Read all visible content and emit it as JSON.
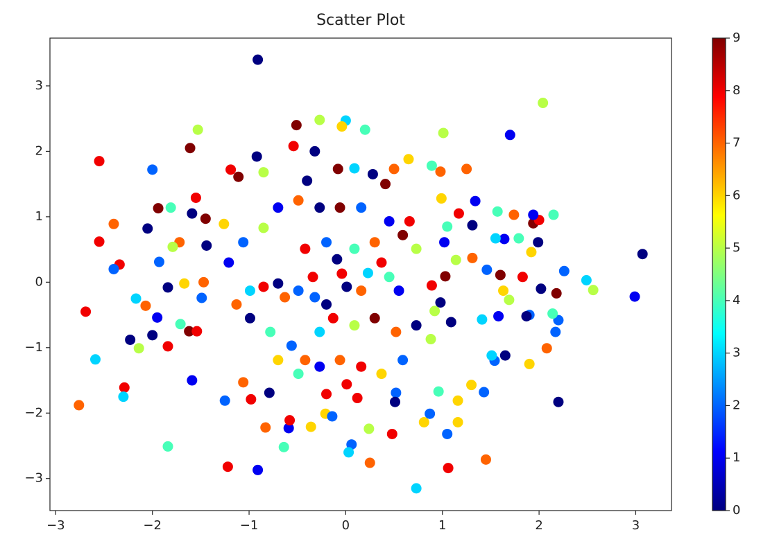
{
  "chart_data": {
    "type": "scatter",
    "title": "Scatter Plot",
    "colormap": "jet",
    "clim": [
      0,
      9
    ],
    "xlim": [
      -3.06,
      3.37
    ],
    "ylim": [
      -3.49,
      3.73
    ],
    "xticks": [
      {
        "value": -3,
        "label": "−3"
      },
      {
        "value": -2,
        "label": "−2"
      },
      {
        "value": -1,
        "label": "−1"
      },
      0,
      1,
      2,
      3
    ],
    "yticks": [
      {
        "value": -3,
        "label": "−3"
      },
      {
        "value": -2,
        "label": "−2"
      },
      {
        "value": -1,
        "label": "−1"
      },
      0,
      1,
      2,
      3
    ],
    "colorbar_ticks": [
      0,
      1,
      2,
      3,
      4,
      5,
      6,
      7,
      8,
      9
    ],
    "x": [
      -0.91,
      2.04,
      1.7,
      -2.55,
      -1.53,
      -1.61,
      -0.51,
      -0.27,
      0.0,
      -0.04,
      0.2,
      1.01,
      -0.54,
      -0.32,
      -0.92,
      -2.0,
      0.65,
      1.25,
      0.5,
      -0.08,
      0.28,
      0.09,
      -1.19,
      -1.11,
      -0.85,
      -0.4,
      0.41,
      -2.4,
      -2.55,
      -1.94,
      -2.05,
      -1.81,
      -1.55,
      -1.59,
      -1.45,
      -1.26,
      -1.44,
      -1.72,
      -1.79,
      -2.34,
      -2.4,
      -1.93,
      -1.84,
      -1.67,
      -1.47,
      -1.49,
      -2.17,
      -2.07,
      -1.95,
      -2.69,
      -1.71,
      -1.62,
      -1.54,
      -1.84,
      -2.23,
      -2.0,
      -2.14,
      -2.59,
      -1.59,
      -2.29,
      -2.3,
      -2.76,
      -1.84,
      -1.22,
      -0.91,
      -1.25,
      -0.98,
      -0.79,
      -1.06,
      -0.83,
      -0.59,
      -0.58,
      -0.64,
      -0.36,
      -0.21,
      -0.14,
      0.06,
      0.03,
      0.24,
      0.25,
      0.48,
      0.52,
      0.51,
      0.81,
      0.87,
      0.96,
      1.05,
      1.06,
      0.73,
      1.45,
      1.16,
      1.3,
      1.43,
      1.16,
      2.2,
      1.9,
      2.08,
      2.17,
      2.2,
      2.14,
      1.9,
      1.87,
      1.65,
      1.54,
      1.51,
      3.07,
      2.99,
      2.56,
      2.49,
      2.26,
      2.18,
      2.02,
      1.83,
      1.94,
      2.0,
      2.15,
      1.94,
      1.99,
      1.92,
      1.74,
      1.57,
      1.34,
      1.17,
      1.31,
      1.64,
      1.55,
      1.79,
      1.46,
      1.6,
      1.63,
      1.69,
      1.41,
      1.58,
      1.31,
      1.09,
      0.92,
      0.98,
      0.89,
      1.03,
      1.14,
      1.02,
      1.05,
      0.99,
      0.89,
      0.98,
      -0.09,
      -0.04,
      -0.2,
      -0.32,
      0.01,
      0.16,
      0.23,
      0.37,
      0.45,
      0.55,
      -0.34,
      -0.49,
      -0.63,
      -0.7,
      -0.85,
      -0.99,
      -0.42,
      -0.2,
      0.09,
      0.3,
      0.59,
      0.73,
      0.66,
      0.45,
      0.16,
      -0.06,
      -0.27,
      -0.49,
      -0.7,
      -0.85,
      -1.06,
      -1.21,
      -1.13,
      -0.99,
      -0.78,
      -0.56,
      -0.42,
      -0.27,
      -0.13,
      0.09,
      0.3,
      0.52,
      0.73,
      0.88,
      0.59,
      0.37,
      0.16,
      -0.06,
      -0.27,
      -0.49,
      -0.7,
      -0.2,
      0.01,
      0.12
    ],
    "values": [
      3.4,
      2.74,
      2.25,
      1.85,
      2.33,
      2.05,
      2.4,
      2.48,
      2.47,
      2.38,
      2.33,
      2.28,
      2.08,
      2.0,
      1.92,
      1.72,
      1.88,
      1.73,
      1.73,
      1.73,
      1.65,
      1.74,
      1.72,
      1.61,
      1.68,
      1.55,
      1.5,
      0.89,
      0.62,
      1.13,
      0.82,
      1.14,
      1.29,
      1.05,
      0.97,
      0.89,
      0.56,
      0.61,
      0.54,
      0.27,
      0.2,
      0.31,
      -0.08,
      -0.02,
      0.0,
      -0.24,
      -0.25,
      -0.36,
      -0.54,
      -0.45,
      -0.64,
      -0.75,
      -0.75,
      -0.98,
      -0.88,
      -0.81,
      -1.01,
      -1.18,
      -1.5,
      -1.61,
      -1.75,
      -1.88,
      -2.51,
      -2.82,
      -2.87,
      -1.81,
      -1.79,
      -1.69,
      -1.53,
      -2.22,
      -2.23,
      -2.11,
      -2.52,
      -2.21,
      -2.01,
      -2.05,
      -2.48,
      -2.6,
      -2.24,
      -2.76,
      -2.32,
      -1.69,
      -1.83,
      -2.14,
      -2.01,
      -1.67,
      -2.32,
      -2.84,
      -3.15,
      -2.71,
      -1.81,
      -1.57,
      -1.68,
      -2.14,
      -1.83,
      -1.25,
      -1.01,
      -0.76,
      -0.58,
      -0.48,
      -0.5,
      -0.52,
      -1.12,
      -1.2,
      -1.12,
      0.43,
      -0.22,
      -0.12,
      0.03,
      0.17,
      -0.17,
      -0.1,
      0.08,
      0.9,
      0.95,
      1.03,
      1.03,
      0.61,
      0.46,
      1.03,
      1.08,
      1.24,
      1.05,
      0.87,
      0.66,
      0.67,
      0.67,
      0.19,
      0.11,
      -0.13,
      -0.27,
      -0.57,
      -0.52,
      0.37,
      -0.61,
      -0.44,
      -0.31,
      -0.05,
      0.09,
      0.34,
      0.61,
      0.85,
      1.28,
      1.78,
      1.69,
      0.35,
      0.13,
      -0.34,
      -0.23,
      -0.07,
      -0.13,
      0.14,
      0.3,
      0.08,
      -0.13,
      0.08,
      -0.13,
      -0.23,
      -0.02,
      -0.07,
      -0.13,
      0.51,
      0.61,
      0.51,
      0.61,
      0.72,
      0.51,
      0.93,
      0.93,
      1.14,
      1.14,
      1.14,
      1.25,
      1.14,
      0.83,
      0.61,
      0.3,
      -0.34,
      -0.55,
      -0.76,
      -0.97,
      -1.19,
      -0.76,
      -0.55,
      -0.66,
      -0.55,
      -0.76,
      -0.66,
      -0.87,
      -1.19,
      -1.4,
      -1.29,
      -1.19,
      -1.29,
      -1.4,
      -1.19,
      -1.71,
      -1.56,
      -1.77
    ],
    "color_values": [
      0,
      5,
      1,
      8,
      5,
      9,
      9,
      5,
      3,
      6,
      4,
      5,
      8,
      0,
      0,
      2,
      6,
      7,
      7,
      9,
      0,
      3,
      8,
      9,
      5,
      0,
      9,
      7,
      8,
      9,
      0,
      4,
      8,
      0,
      9,
      6,
      0,
      7,
      5,
      8,
      2,
      2,
      0,
      6,
      7,
      2,
      3,
      7,
      1,
      8,
      4,
      9,
      8,
      8,
      0,
      0,
      5,
      3,
      1,
      8,
      3,
      7,
      4,
      8,
      1,
      2,
      8,
      0,
      7,
      7,
      1,
      8,
      4,
      6,
      6,
      2,
      2,
      3,
      5,
      7,
      8,
      2,
      0,
      6,
      2,
      4,
      2,
      8,
      3,
      7,
      6,
      6,
      2,
      6,
      0,
      6,
      7,
      2,
      2,
      4,
      2,
      0,
      0,
      2,
      3,
      0,
      1,
      5,
      3,
      2,
      9,
      0,
      8,
      9,
      8,
      4,
      1,
      0,
      6,
      7,
      4,
      1,
      8,
      0,
      1,
      3,
      4,
      2,
      9,
      6,
      5,
      3,
      1,
      7,
      0,
      5,
      0,
      8,
      9,
      5,
      1,
      4,
      6,
      4,
      7,
      0,
      8,
      0,
      2,
      0,
      7,
      3,
      8,
      4,
      1,
      8,
      2,
      7,
      0,
      8,
      3,
      8,
      2,
      4,
      7,
      9,
      5,
      8,
      1,
      2,
      9,
      0,
      7,
      1,
      5,
      2,
      1,
      7,
      0,
      4,
      2,
      7,
      3,
      8,
      5,
      9,
      7,
      0,
      5,
      2,
      6,
      8,
      7,
      1,
      4,
      6,
      8,
      8,
      8
    ]
  }
}
